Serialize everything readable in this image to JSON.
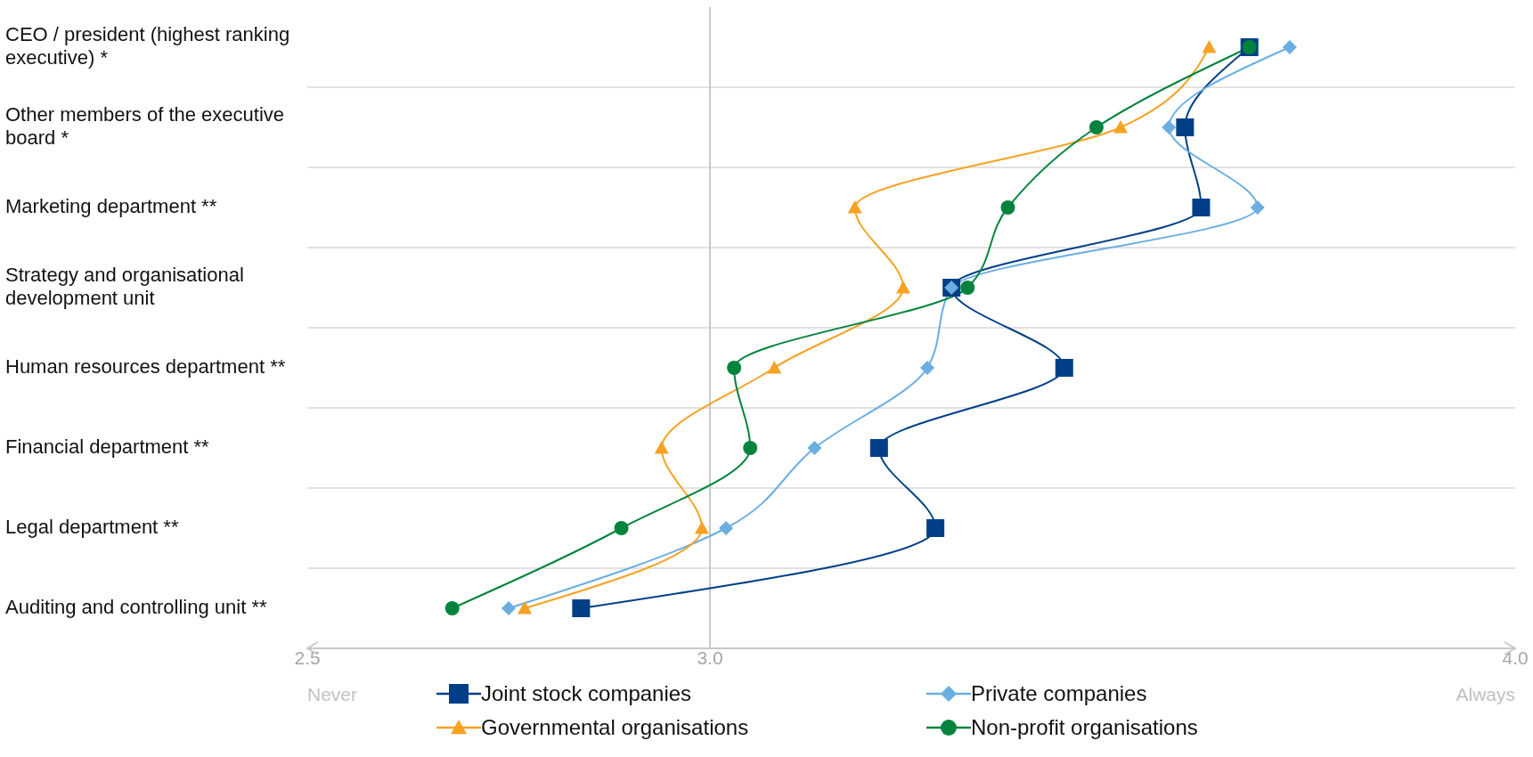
{
  "chart_data": {
    "type": "line",
    "orientation": "horizontal",
    "categories": [
      "CEO / president (highest ranking executive) *",
      "Other members of the executive board *",
      "Marketing department **",
      "Strategy and organisational development unit",
      "Human resources department **",
      "Financial department **",
      "Legal department **",
      "Auditing and controlling unit **"
    ],
    "series": [
      {
        "name": "Joint stock companies",
        "color": "#003f87",
        "marker": "square",
        "values": [
          3.67,
          3.59,
          3.61,
          3.3,
          3.44,
          3.21,
          3.28,
          2.84
        ]
      },
      {
        "name": "Private companies",
        "color": "#6aaee2",
        "marker": "diamond",
        "values": [
          3.72,
          3.57,
          3.68,
          3.3,
          3.27,
          3.13,
          3.02,
          2.75
        ]
      },
      {
        "name": "Governmental organisations",
        "color": "#f7a223",
        "marker": "triangle",
        "values": [
          3.62,
          3.51,
          3.18,
          3.24,
          3.08,
          2.94,
          2.99,
          2.77
        ]
      },
      {
        "name": "Non-profit organisations",
        "color": "#00843d",
        "marker": "circle",
        "values": [
          3.67,
          3.48,
          3.37,
          3.32,
          3.03,
          3.05,
          2.89,
          2.68
        ]
      }
    ],
    "xlim": [
      2.5,
      4.0
    ],
    "xticks": [
      {
        "value": 2.5,
        "label": "2.5"
      },
      {
        "value": 3.0,
        "label": "3.0"
      },
      {
        "value": 4.0,
        "label": "4.0"
      }
    ],
    "grid": "y",
    "legend": "bottom",
    "ref_lines": [
      {
        "axis": "x",
        "value": 3.0,
        "color": "#c8c8c8"
      }
    ],
    "annotations": [
      "Never",
      "Always"
    ]
  }
}
